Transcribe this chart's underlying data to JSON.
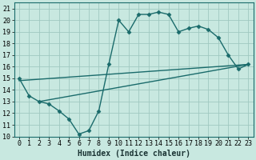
{
  "title": "",
  "xlabel": "Humidex (Indice chaleur)",
  "xlim": [
    -0.5,
    23.5
  ],
  "ylim": [
    10,
    21.5
  ],
  "xticks": [
    0,
    1,
    2,
    3,
    4,
    5,
    6,
    7,
    8,
    9,
    10,
    11,
    12,
    13,
    14,
    15,
    16,
    17,
    18,
    19,
    20,
    21,
    22,
    23
  ],
  "yticks": [
    10,
    11,
    12,
    13,
    14,
    15,
    16,
    17,
    18,
    19,
    20,
    21
  ],
  "bg_color": "#c8e8e0",
  "grid_color": "#a0c8c0",
  "line_color": "#1a6b6b",
  "line1_x": [
    0,
    1,
    2,
    3,
    4,
    5,
    6,
    7,
    8,
    9,
    10,
    11,
    12,
    13,
    14,
    15,
    16,
    17,
    18,
    19,
    20,
    21,
    22,
    23
  ],
  "line1_y": [
    15.0,
    13.5,
    13.0,
    12.8,
    12.2,
    11.5,
    10.2,
    10.5,
    12.2,
    16.2,
    20.0,
    19.0,
    20.5,
    20.5,
    20.7,
    20.5,
    19.0,
    19.3,
    19.5,
    19.2,
    18.5,
    17.0,
    15.8,
    16.2
  ],
  "line2_x": [
    2,
    23
  ],
  "line2_y": [
    13.0,
    16.2
  ],
  "line3_x": [
    0,
    23
  ],
  "line3_y": [
    14.8,
    16.2
  ],
  "xlabel_fontsize": 7,
  "tick_fontsize": 6,
  "lw": 1.0,
  "ms": 2.5
}
